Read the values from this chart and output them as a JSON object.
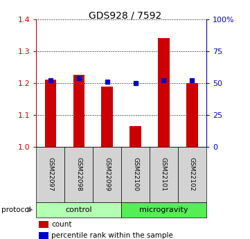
{
  "title": "GDS928 / 7592",
  "samples": [
    "GSM22097",
    "GSM22098",
    "GSM22099",
    "GSM22100",
    "GSM22101",
    "GSM22102"
  ],
  "red_values": [
    1.21,
    1.225,
    1.19,
    1.065,
    1.34,
    1.2
  ],
  "blue_values": [
    52,
    54,
    51,
    50,
    52,
    52
  ],
  "groups": [
    {
      "label": "control",
      "start": 0,
      "end": 3,
      "color": "#b3ffb3"
    },
    {
      "label": "microgravity",
      "start": 3,
      "end": 6,
      "color": "#55ee55"
    }
  ],
  "ylim_left": [
    1.0,
    1.4
  ],
  "ylim_right": [
    0,
    100
  ],
  "yticks_left": [
    1.0,
    1.1,
    1.2,
    1.3,
    1.4
  ],
  "yticks_right": [
    0,
    25,
    50,
    75,
    100
  ],
  "ytick_labels_right": [
    "0",
    "25",
    "50",
    "75",
    "100%"
  ],
  "left_tick_color": "#cc0000",
  "right_tick_color": "#0000cc",
  "bar_color": "#cc0000",
  "marker_color": "#0000cc",
  "bar_width": 0.4,
  "legend_count_label": "count",
  "legend_pct_label": "percentile rank within the sample"
}
